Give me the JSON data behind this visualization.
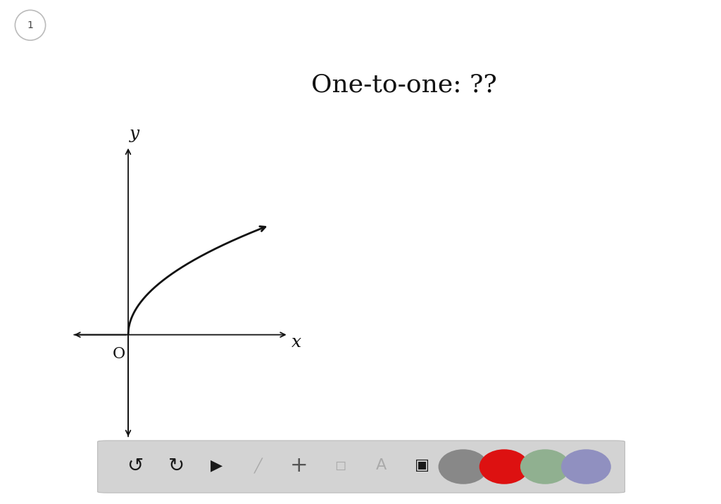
{
  "background_color": "#ffffff",
  "page_number": "1",
  "annotation_text": "One-to-one: ??",
  "annotation_fontsize": 26,
  "curve_color": "#111111",
  "curve_linewidth": 2.0,
  "axis_color": "#111111",
  "axis_linewidth": 1.3,
  "origin_label": "O",
  "x_label": "x",
  "y_label": "y",
  "toolbar_bg": "#d3d3d3",
  "circle_colors": [
    "#888888",
    "#dd1111",
    "#90b090",
    "#9090c0"
  ]
}
